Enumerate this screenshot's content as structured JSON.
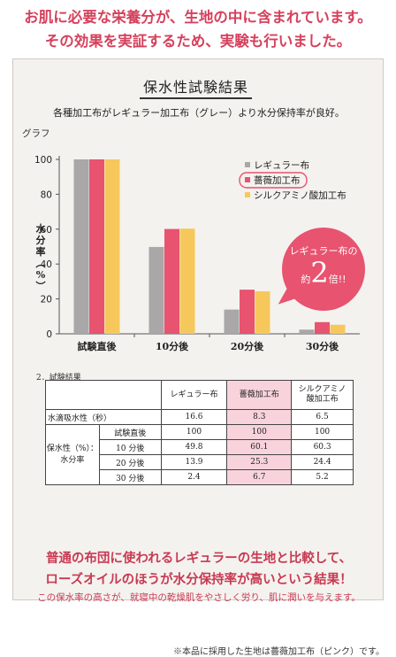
{
  "intro": {
    "line1": "お肌に必要な栄養分が、生地の中に含まれています。",
    "line2": "その効果を実証するため、実験も行いました。"
  },
  "panel": {
    "title": "保水性試験結果",
    "subtitle": "各種加工布がレギュラー加工布（グレー）より水分保持率が良好。"
  },
  "chart_data": {
    "type": "bar",
    "title": "グラフ",
    "ylabel": "水分率（%）",
    "xlabel": "",
    "ylim": [
      0,
      100
    ],
    "yticks": [
      0,
      20,
      40,
      60,
      80,
      100
    ],
    "categories": [
      "試験直後",
      "10分後",
      "20分後",
      "30分後"
    ],
    "series": [
      {
        "name": "レギュラー布",
        "values": [
          100,
          49.8,
          13.9,
          2.4
        ],
        "color": "#a9a7a8"
      },
      {
        "name": "薔薇加工布",
        "values": [
          100,
          60.1,
          25.3,
          6.7
        ],
        "color": "#e8536f"
      },
      {
        "name": "シルクアミノ酸加工布",
        "values": [
          100,
          60.3,
          24.4,
          5.2
        ],
        "color": "#f6c85c"
      }
    ],
    "legend_position": "top-right",
    "grid": false
  },
  "callout": {
    "line1": "レギュラー布の",
    "prefix": "約",
    "big": "2",
    "suffix": "倍!!"
  },
  "table": {
    "label": "2．試験結果",
    "headers": [
      "レギュラー布",
      "薔薇加工布",
      "シルクアミノ酸加工布"
    ],
    "water_row": {
      "label": "水滴吸水性（秒）",
      "values": [
        "16.6",
        "8.3",
        "6.5"
      ]
    },
    "retention_label": "保水性（%）：水分率",
    "retention_rows": [
      {
        "time": "試験直後",
        "values": [
          "100",
          "100",
          "100"
        ]
      },
      {
        "time": "10 分後",
        "values": [
          "49.8",
          "60.1",
          "60.3"
        ]
      },
      {
        "time": "20 分後",
        "values": [
          "13.9",
          "25.3",
          "24.4"
        ]
      },
      {
        "time": "30 分後",
        "values": [
          "2.4",
          "6.7",
          "5.2"
        ]
      }
    ]
  },
  "conclusion": {
    "line1": "普通の布団に使われるレギュラーの生地と比較して、",
    "line2": "ローズオイルのほうが水分保持率が高いという結果！",
    "note": "この保水率の高さが、就寝中の乾燥肌をやさしく労り、肌に潤いを与えます。"
  },
  "footnote": "※本品に採用した生地は薔薇加工布（ピンク）です。"
}
